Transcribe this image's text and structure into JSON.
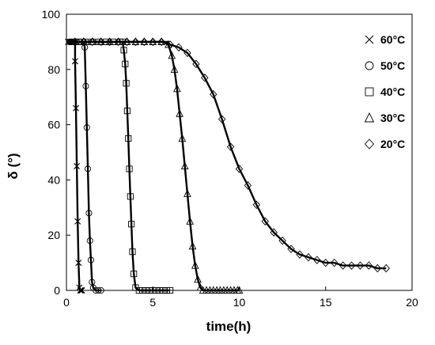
{
  "chart_data": {
    "type": "scatter",
    "xlabel": "time(h)",
    "ylabel": "δ (°)",
    "xlim": [
      0,
      20
    ],
    "ylim": [
      0,
      100
    ],
    "xticks": [
      0,
      5,
      10,
      15,
      20
    ],
    "yticks": [
      0,
      20,
      40,
      60,
      80,
      100
    ],
    "grid": false,
    "legend_position": "right",
    "series": [
      {
        "name": "60°C",
        "marker": "cross",
        "t0": 0.5,
        "hold": 90,
        "floor": 0,
        "fall_end": 0.75,
        "x": [
          0.1,
          0.2,
          0.3,
          0.4,
          0.45,
          0.5,
          0.55,
          0.6,
          0.65,
          0.7,
          0.75,
          0.8,
          0.85,
          0.9
        ],
        "y": [
          90,
          90,
          90,
          90,
          90,
          83,
          66,
          45,
          25,
          10,
          1,
          0,
          0,
          0
        ]
      },
      {
        "name": "50°C",
        "marker": "circle",
        "t0": 1.0,
        "hold": 90,
        "floor": 0,
        "fall_end": 1.6,
        "x": [
          0.2,
          0.4,
          0.6,
          0.8,
          1.0,
          1.06,
          1.12,
          1.18,
          1.24,
          1.3,
          1.36,
          1.42,
          1.48,
          1.55,
          1.7,
          1.85,
          2.0
        ],
        "y": [
          90,
          90,
          90,
          90,
          90,
          88,
          74,
          59,
          44,
          28,
          18,
          11,
          3,
          1,
          0,
          0,
          0
        ]
      },
      {
        "name": "40°C",
        "marker": "square",
        "t0": 3.25,
        "hold": 90,
        "floor": 0,
        "fall_end": 4.0,
        "x": [
          0.3,
          0.7,
          1.1,
          1.5,
          1.9,
          2.3,
          2.7,
          3.1,
          3.25,
          3.32,
          3.4,
          3.46,
          3.52,
          3.58,
          3.64,
          3.7,
          3.76,
          3.82,
          3.9,
          4.0,
          4.2,
          4.4,
          4.6,
          4.8,
          5.0,
          5.2,
          5.4,
          5.6,
          5.8,
          6.0
        ],
        "y": [
          90,
          90,
          90,
          90,
          90,
          90,
          90,
          90,
          90,
          87,
          82,
          75,
          65,
          55,
          44,
          34,
          24,
          14,
          6,
          1,
          0,
          0,
          0,
          0,
          0,
          0,
          0,
          0,
          0,
          0
        ]
      },
      {
        "name": "30°C",
        "marker": "triangle",
        "t0": 5.9,
        "hold": 90,
        "floor": 0,
        "fall_end": 7.9,
        "x": [
          0.5,
          1.0,
          1.5,
          2.0,
          2.5,
          3.0,
          3.5,
          4.0,
          4.5,
          5.0,
          5.5,
          5.9,
          6.1,
          6.25,
          6.4,
          6.55,
          6.7,
          6.85,
          7.0,
          7.15,
          7.3,
          7.45,
          7.6,
          7.75,
          7.9,
          8.1,
          8.3,
          8.5,
          8.7,
          8.9,
          9.1,
          9.3,
          9.5,
          9.7,
          9.9,
          10.0
        ],
        "y": [
          90,
          90,
          90,
          90,
          90,
          90,
          90,
          90,
          90,
          90,
          90,
          89,
          85,
          80,
          73,
          64,
          55,
          45,
          35,
          25,
          16,
          9,
          4,
          1,
          0,
          0,
          0,
          0,
          0,
          0,
          0,
          0,
          0,
          0,
          0,
          0
        ]
      },
      {
        "name": "20°C",
        "marker": "diamond",
        "t0": 5.0,
        "hold": 90,
        "floor": 8,
        "fall_end": 18.5,
        "x": [
          0.5,
          1.0,
          1.5,
          2.0,
          2.5,
          3.0,
          3.5,
          4.0,
          4.5,
          5.0,
          5.5,
          6.0,
          6.5,
          7.0,
          7.5,
          8.0,
          8.5,
          9.0,
          9.5,
          10.0,
          10.5,
          11.0,
          11.5,
          12.0,
          12.5,
          13.0,
          13.5,
          14.0,
          14.5,
          15.0,
          15.5,
          16.0,
          16.5,
          17.0,
          17.5,
          18.0,
          18.5
        ],
        "y": [
          90,
          90,
          90,
          90,
          90,
          90,
          90,
          90,
          90,
          90,
          90,
          89,
          88,
          86,
          82,
          77,
          71,
          62,
          52,
          44,
          38,
          31,
          25,
          21,
          18,
          15,
          13,
          12,
          11,
          10,
          10,
          9,
          9,
          9,
          9,
          8,
          8
        ]
      }
    ]
  }
}
